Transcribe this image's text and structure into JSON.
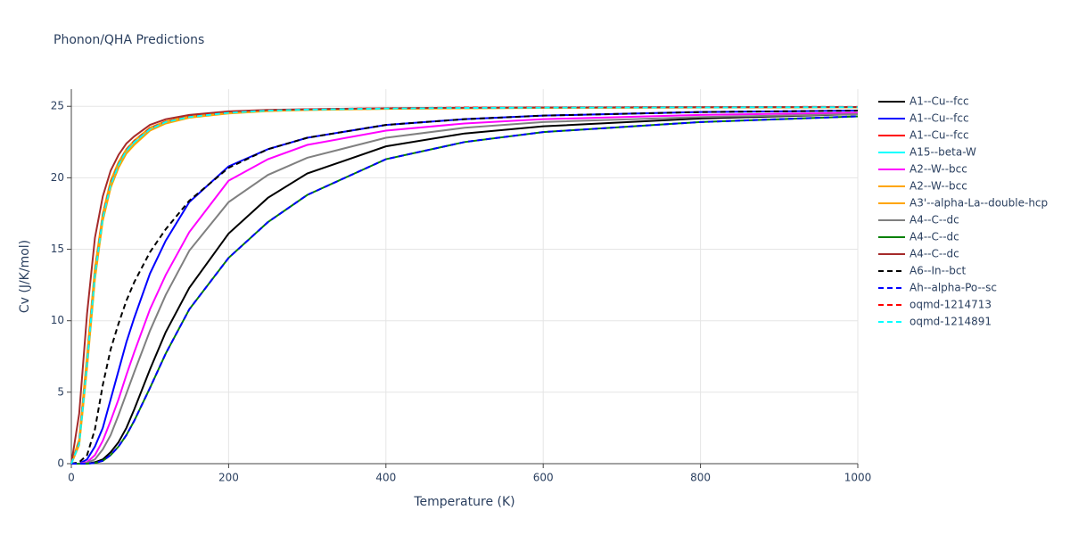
{
  "chart_data": {
    "type": "line",
    "title": "Phonon/QHA Predictions",
    "x_label": "Temperature (K)",
    "y_label": "Cv (J/K/mol)",
    "x": [
      0,
      10,
      20,
      30,
      40,
      50,
      60,
      70,
      80,
      100,
      120,
      150,
      200,
      250,
      300,
      400,
      500,
      600,
      800,
      1000
    ],
    "xlim": [
      0,
      1000
    ],
    "xticks": [
      0,
      200,
      400,
      600,
      800,
      1000
    ],
    "ylim": [
      0,
      26.2
    ],
    "yticks": [
      0,
      5,
      10,
      15,
      20,
      25
    ],
    "grid": true,
    "series": [
      {
        "name": "A1--Cu--fcc",
        "color": "#000000",
        "dash": false,
        "values": [
          0,
          0,
          0,
          0.1,
          0.3,
          0.8,
          1.5,
          2.5,
          3.8,
          6.6,
          9.2,
          12.3,
          16.1,
          18.6,
          20.3,
          22.2,
          23.1,
          23.6,
          24.15,
          24.45
        ]
      },
      {
        "name": "A1--Cu--fcc",
        "color": "#0000ff",
        "dash": false,
        "values": [
          0,
          0,
          0.3,
          1.2,
          2.5,
          4.5,
          6.5,
          8.5,
          10.2,
          13.3,
          15.6,
          18.3,
          20.8,
          22,
          22.8,
          23.7,
          24.1,
          24.35,
          24.6,
          24.7
        ]
      },
      {
        "name": "A1--Cu--fcc",
        "color": "#ff0000",
        "dash": false,
        "values": [
          0,
          1.6,
          7.3,
          13.5,
          17.4,
          19.7,
          21,
          22,
          22.6,
          23.5,
          23.95,
          24.3,
          24.58,
          24.72,
          24.78,
          24.85,
          24.89,
          24.91,
          24.93,
          24.94
        ]
      },
      {
        "name": "A15--beta-W",
        "color": "#00ffff",
        "dash": false,
        "values": [
          0,
          1.4,
          6.9,
          13.1,
          17.1,
          19.4,
          20.8,
          21.8,
          22.4,
          23.35,
          23.85,
          24.22,
          24.53,
          24.68,
          24.75,
          24.83,
          24.87,
          24.9,
          24.92,
          24.93
        ]
      },
      {
        "name": "A2--W--bcc",
        "color": "#ff00ff",
        "dash": false,
        "values": [
          0,
          0,
          0.1,
          0.6,
          1.6,
          3,
          4.5,
          6.2,
          7.8,
          10.8,
          13.2,
          16.2,
          19.8,
          21.3,
          22.3,
          23.3,
          23.8,
          24.1,
          24.4,
          24.55
        ]
      },
      {
        "name": "A2--W--bcc",
        "color": "#ffa500",
        "dash": false,
        "values": [
          0,
          1.3,
          6.7,
          12.9,
          17,
          19.3,
          20.7,
          21.7,
          22.3,
          23.3,
          23.8,
          24.2,
          24.5,
          24.66,
          24.74,
          24.82,
          24.86,
          24.89,
          24.91,
          24.92
        ]
      },
      {
        "name": "A3'--alpha-La--double-hcp",
        "color": "#ffa500",
        "dash": false,
        "values": [
          0,
          1.7,
          7.6,
          13.7,
          17.5,
          19.8,
          21.1,
          22,
          22.6,
          23.5,
          23.95,
          24.3,
          24.58,
          24.72,
          24.78,
          24.85,
          24.89,
          24.91,
          24.93,
          24.94
        ]
      },
      {
        "name": "A4--C--dc",
        "color": "#808080",
        "dash": false,
        "values": [
          0,
          0,
          0.05,
          0.3,
          1,
          2,
          3.4,
          4.9,
          6.4,
          9.3,
          11.8,
          14.9,
          18.3,
          20.2,
          21.4,
          22.8,
          23.5,
          23.9,
          24.25,
          24.45
        ]
      },
      {
        "name": "A4--C--dc",
        "color": "#008000",
        "dash": false,
        "values": [
          0,
          0,
          0,
          0.05,
          0.2,
          0.6,
          1.2,
          2,
          3,
          5.3,
          7.7,
          10.8,
          14.4,
          16.9,
          18.8,
          21.3,
          22.5,
          23.2,
          23.9,
          24.3
        ]
      },
      {
        "name": "A4--C--dc",
        "color": "#a52a2a",
        "dash": false,
        "values": [
          0,
          3.5,
          10.5,
          15.8,
          18.7,
          20.5,
          21.6,
          22.4,
          22.9,
          23.7,
          24.1,
          24.4,
          24.65,
          24.75,
          24.8,
          24.87,
          24.9,
          24.92,
          24.94,
          24.95
        ]
      },
      {
        "name": "A6--In--bct",
        "color": "#000000",
        "dash": true,
        "values": [
          0,
          0.1,
          0.6,
          2.4,
          5.5,
          8,
          9.8,
          11.4,
          12.7,
          14.8,
          16.4,
          18.4,
          20.7,
          22,
          22.8,
          23.7,
          24.1,
          24.35,
          24.6,
          24.7
        ]
      },
      {
        "name": "Ah--alpha-Po--sc",
        "color": "#0000ff",
        "dash": true,
        "values": [
          0,
          0,
          0,
          0.05,
          0.2,
          0.6,
          1.2,
          2,
          3,
          5.3,
          7.7,
          10.8,
          14.4,
          16.9,
          18.8,
          21.3,
          22.5,
          23.2,
          23.9,
          24.3
        ]
      },
      {
        "name": "oqmd-1214713",
        "color": "#ff0000",
        "dash": true,
        "values": [
          0,
          1.5,
          7.1,
          13.3,
          17.3,
          19.6,
          20.95,
          21.95,
          22.55,
          23.45,
          23.92,
          24.28,
          24.57,
          24.72,
          24.79,
          24.87,
          24.91,
          24.93,
          24.95,
          24.96
        ]
      },
      {
        "name": "oqmd-1214891",
        "color": "#00ffff",
        "dash": true,
        "values": [
          0,
          1.4,
          7,
          13.2,
          17.2,
          19.5,
          20.9,
          21.9,
          22.5,
          23.4,
          23.9,
          24.25,
          24.55,
          24.7,
          24.77,
          24.85,
          24.89,
          24.91,
          24.93,
          24.94
        ]
      }
    ]
  }
}
